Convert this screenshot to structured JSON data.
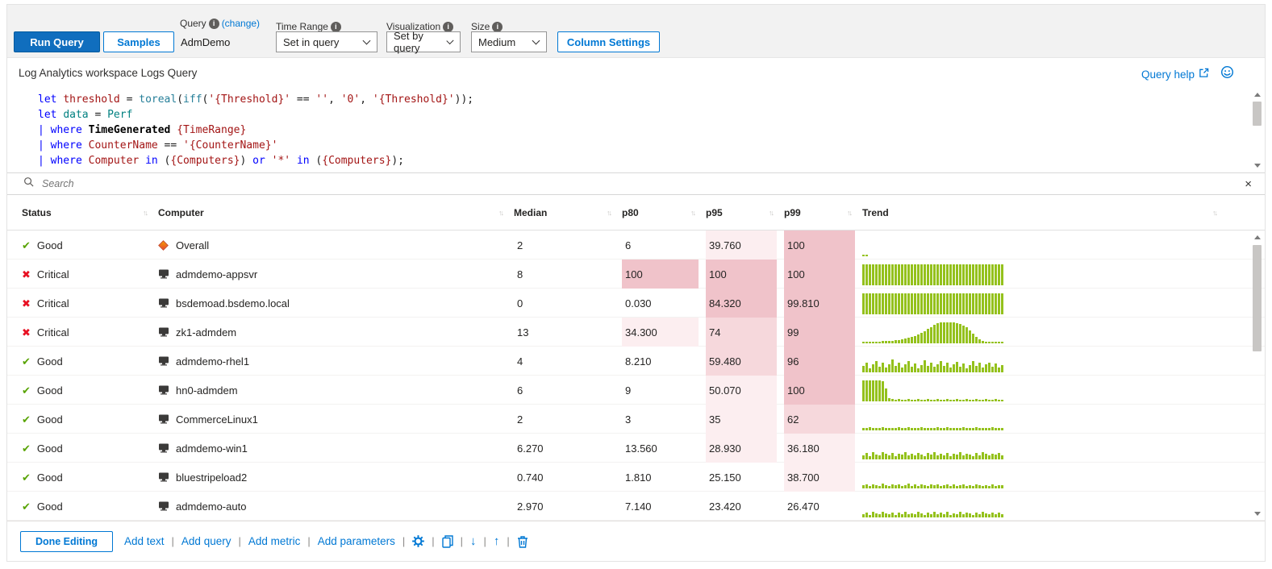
{
  "toolbar": {
    "run_query_label": "Run Query",
    "samples_label": "Samples",
    "query_group": {
      "label": "Query",
      "change_link": "(change)",
      "value": "AdmDemo"
    },
    "time_range": {
      "label": "Time Range",
      "value": "Set in query"
    },
    "visualization": {
      "label": "Visualization",
      "value": "Set by query"
    },
    "size": {
      "label": "Size",
      "value": "Medium"
    },
    "column_settings_label": "Column Settings"
  },
  "query_panel": {
    "title": "Log Analytics workspace Logs Query",
    "help_link_label": "Query help",
    "code_lines": [
      [
        [
          "k",
          "let"
        ],
        [
          "p",
          " "
        ],
        [
          "v",
          "threshold"
        ],
        [
          "p",
          " = "
        ],
        [
          "f",
          "toreal"
        ],
        [
          "p",
          "("
        ],
        [
          "f",
          "iff"
        ],
        [
          "p",
          "("
        ],
        [
          "s",
          "'{Threshold}'"
        ],
        [
          "p",
          " == "
        ],
        [
          "s",
          "''"
        ],
        [
          "p",
          ", "
        ],
        [
          "s",
          "'0'"
        ],
        [
          "p",
          ", "
        ],
        [
          "s",
          "'{Threshold}'"
        ],
        [
          "p",
          "));"
        ]
      ],
      [
        [
          "k",
          "let"
        ],
        [
          "p",
          " "
        ],
        [
          "t",
          "data"
        ],
        [
          "p",
          " = "
        ],
        [
          "t",
          "Perf"
        ]
      ],
      [
        [
          "k",
          "|"
        ],
        [
          "p",
          " "
        ],
        [
          "k",
          "where"
        ],
        [
          "p",
          " "
        ],
        [
          "b",
          "TimeGenerated"
        ],
        [
          "p",
          " "
        ],
        [
          "s",
          "{TimeRange}"
        ]
      ],
      [
        [
          "k",
          "|"
        ],
        [
          "p",
          " "
        ],
        [
          "k",
          "where"
        ],
        [
          "p",
          " "
        ],
        [
          "v",
          "CounterName"
        ],
        [
          "p",
          " == "
        ],
        [
          "s",
          "'{CounterName}'"
        ]
      ],
      [
        [
          "k",
          "|"
        ],
        [
          "p",
          " "
        ],
        [
          "k",
          "where"
        ],
        [
          "p",
          " "
        ],
        [
          "v",
          "Computer"
        ],
        [
          "p",
          " "
        ],
        [
          "k",
          "in"
        ],
        [
          "p",
          " ("
        ],
        [
          "s",
          "{Computers}"
        ],
        [
          "p",
          ") "
        ],
        [
          "k",
          "or"
        ],
        [
          "p",
          " "
        ],
        [
          "s",
          "'*'"
        ],
        [
          "p",
          " "
        ],
        [
          "k",
          "in"
        ],
        [
          "p",
          " ("
        ],
        [
          "s",
          "{Computers}"
        ],
        [
          "p",
          ");"
        ]
      ]
    ]
  },
  "search": {
    "placeholder": "Search"
  },
  "table": {
    "columns": [
      "Status",
      "Computer",
      "Median",
      "p80",
      "p95",
      "p99",
      "Trend"
    ],
    "rows": [
      {
        "status": "Good",
        "severity": "good",
        "computer": "Overall",
        "icon": "diamond",
        "median": "2",
        "p80": "6",
        "p80_shade": 0,
        "p95": "39.760",
        "p95_shade": 1,
        "p99": "100",
        "p99_shade": 3,
        "trend": [
          5,
          3
        ]
      },
      {
        "status": "Critical",
        "severity": "critical",
        "computer": "admdemo-appsvr",
        "icon": "monitor",
        "median": "8",
        "p80": "100",
        "p80_shade": 3,
        "p95": "100",
        "p95_shade": 3,
        "p99": "100",
        "p99_shade": 3,
        "trend": [
          100,
          100,
          100,
          100,
          100,
          100,
          100,
          100,
          100,
          100,
          100,
          100,
          100,
          100,
          100,
          100,
          100,
          100,
          100,
          100,
          100,
          100,
          100,
          100,
          100,
          100,
          100,
          100,
          100,
          100,
          100,
          100,
          100,
          100,
          100,
          100,
          100,
          100,
          100,
          100,
          100,
          100,
          100,
          100
        ]
      },
      {
        "status": "Critical",
        "severity": "critical",
        "computer": "bsdemoad.bsdemo.local",
        "icon": "monitor",
        "median": "0",
        "p80": "0.030",
        "p80_shade": 0,
        "p95": "84.320",
        "p95_shade": 3,
        "p99": "99.810",
        "p99_shade": 3,
        "trend": [
          100,
          100,
          100,
          100,
          100,
          100,
          100,
          100,
          100,
          100,
          100,
          100,
          100,
          100,
          100,
          100,
          100,
          100,
          100,
          100,
          100,
          100,
          100,
          100,
          100,
          100,
          100,
          100,
          100,
          100,
          100,
          100,
          100,
          100,
          100,
          100,
          100,
          100,
          100,
          100,
          100,
          100,
          100,
          100
        ]
      },
      {
        "status": "Critical",
        "severity": "critical",
        "computer": "zk1-admdem",
        "icon": "monitor",
        "median": "13",
        "p80": "34.300",
        "p80_shade": 1,
        "p95": "74",
        "p95_shade": 2,
        "p99": "99",
        "p99_shade": 3,
        "trend": [
          6,
          6,
          7,
          8,
          8,
          9,
          10,
          11,
          12,
          13,
          15,
          17,
          20,
          23,
          26,
          30,
          35,
          42,
          50,
          58,
          68,
          78,
          88,
          96,
          100,
          100,
          100,
          100,
          100,
          97,
          92,
          85,
          75,
          62,
          45,
          30,
          18,
          10,
          6,
          4,
          3,
          3,
          3,
          3
        ]
      },
      {
        "status": "Good",
        "severity": "good",
        "computer": "admdemo-rhel1",
        "icon": "monitor",
        "median": "4",
        "p80": "8.210",
        "p80_shade": 0,
        "p95": "59.480",
        "p95_shade": 2,
        "p99": "96",
        "p99_shade": 3,
        "trend": [
          30,
          45,
          20,
          38,
          55,
          28,
          48,
          24,
          40,
          60,
          30,
          46,
          22,
          38,
          52,
          28,
          44,
          20,
          36,
          56,
          32,
          48,
          26,
          40,
          54,
          30,
          46,
          22,
          38,
          50,
          28,
          44,
          20,
          36,
          52,
          30,
          46,
          24,
          38,
          48,
          26,
          42,
          22,
          34
        ]
      },
      {
        "status": "Good",
        "severity": "good",
        "computer": "hn0-admdem",
        "icon": "monitor",
        "median": "6",
        "p80": "9",
        "p80_shade": 0,
        "p95": "50.070",
        "p95_shade": 1,
        "p99": "100",
        "p99_shade": 3,
        "trend": [
          100,
          100,
          100,
          100,
          100,
          100,
          95,
          60,
          14,
          10,
          9,
          10,
          9,
          8,
          10,
          9,
          8,
          10,
          9,
          8,
          10,
          9,
          8,
          10,
          9,
          8,
          10,
          9,
          8,
          10,
          9,
          8,
          10,
          9,
          8,
          10,
          9,
          8,
          10,
          9,
          8,
          10,
          9,
          8
        ]
      },
      {
        "status": "Good",
        "severity": "good",
        "computer": "CommerceLinux1",
        "icon": "monitor",
        "median": "2",
        "p80": "3",
        "p80_shade": 0,
        "p95": "35",
        "p95_shade": 1,
        "p99": "62",
        "p99_shade": 2,
        "trend": [
          12,
          10,
          14,
          11,
          13,
          10,
          15,
          12,
          10,
          13,
          11,
          14,
          10,
          12,
          15,
          11,
          13,
          10,
          14,
          12,
          10,
          13,
          11,
          15,
          10,
          12,
          14,
          11,
          13,
          10,
          12,
          15,
          11,
          13,
          10,
          14,
          12,
          10,
          13,
          11,
          14,
          10,
          12,
          13
        ]
      },
      {
        "status": "Good",
        "severity": "good",
        "computer": "admdemo-win1",
        "icon": "monitor",
        "median": "6.270",
        "p80": "13.560",
        "p80_shade": 0,
        "p95": "28.930",
        "p95_shade": 1,
        "p99": "36.180",
        "p99_shade": 1,
        "trend": [
          20,
          30,
          15,
          34,
          22,
          18,
          36,
          26,
          20,
          30,
          16,
          28,
          22,
          34,
          18,
          26,
          20,
          32,
          24,
          16,
          30,
          22,
          36,
          18,
          28,
          20,
          32,
          16,
          26,
          22,
          34,
          18,
          28,
          24,
          16,
          30,
          20,
          34,
          26,
          18,
          28,
          22,
          30,
          20
        ]
      },
      {
        "status": "Good",
        "severity": "good",
        "computer": "bluestripeload2",
        "icon": "monitor",
        "median": "0.740",
        "p80": "1.810",
        "p80_shade": 0,
        "p95": "25.150",
        "p95_shade": 0,
        "p99": "38.700",
        "p99_shade": 1,
        "trend": [
          14,
          18,
          10,
          20,
          15,
          12,
          22,
          16,
          12,
          18,
          14,
          20,
          10,
          16,
          22,
          13,
          18,
          11,
          20,
          15,
          12,
          19,
          14,
          21,
          11,
          16,
          20,
          13,
          18,
          11,
          15,
          21,
          12,
          17,
          11,
          19,
          14,
          11,
          17,
          13,
          19,
          11,
          15,
          17
        ]
      },
      {
        "status": "Good",
        "severity": "good",
        "computer": "admdemo-auto",
        "icon": "monitor",
        "median": "2.970",
        "p80": "7.140",
        "p80_shade": 0,
        "p95": "23.420",
        "p95_shade": 0,
        "p99": "26.470",
        "p99_shade": 0,
        "trend": [
          16,
          22,
          12,
          26,
          18,
          14,
          28,
          20,
          15,
          24,
          12,
          22,
          17,
          27,
          14,
          20,
          16,
          25,
          19,
          12,
          23,
          17,
          28,
          14,
          22,
          16,
          26,
          12,
          21,
          17,
          27,
          14,
          22,
          19,
          12,
          24,
          16,
          26,
          20,
          14,
          22,
          17,
          24,
          16
        ]
      }
    ]
  },
  "footer": {
    "done_editing": "Done Editing",
    "links": [
      "Add text",
      "Add query",
      "Add metric",
      "Add parameters"
    ]
  },
  "colors": {
    "accent": "#0078d4",
    "run_button": "#106ebe",
    "good": "#57a300",
    "critical": "#e81123",
    "trend_bar": "#94c11c",
    "shade1": "#fceef0",
    "shade2": "#f6d8dc",
    "shade3": "#f0c3ca"
  }
}
